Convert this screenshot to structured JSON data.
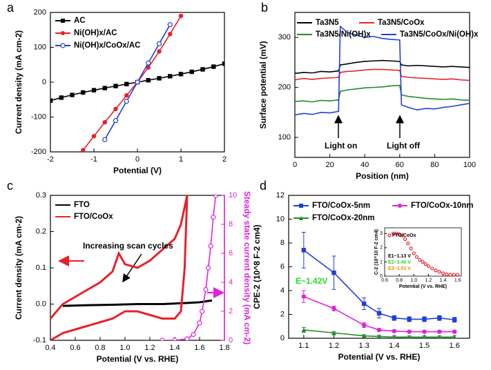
{
  "chart_data": [
    {
      "panel": "a",
      "type": "line",
      "xlabel": "Potential (V)",
      "ylabel": "Current density (mA cm-2)",
      "xlim": [
        -2,
        2
      ],
      "ylim": [
        -200,
        200
      ],
      "xticks": [
        -2,
        -1,
        0,
        1,
        2
      ],
      "yticks": [
        -200,
        -100,
        0,
        100,
        200
      ],
      "x": [
        -2,
        -1.75,
        -1.5,
        -1.25,
        -1,
        -0.75,
        -0.5,
        -0.25,
        0,
        0.25,
        0.5,
        0.75,
        1,
        1.25,
        1.5,
        1.75,
        2
      ],
      "series": [
        {
          "name": "AC",
          "color": "#000000",
          "marker": "square",
          "values": [
            -53,
            -44.4,
            -36.7,
            -29.6,
            -23.1,
            -17,
            -11.1,
            -5.5,
            0,
            5.5,
            11.1,
            17,
            23.1,
            29.6,
            36.7,
            44.4,
            53
          ]
        },
        {
          "name": "Ni(OH)x/AC",
          "color": "#e8202a",
          "marker": "circle",
          "values": [
            null,
            null,
            null,
            -195,
            -155,
            -115,
            -77,
            -38,
            0,
            42,
            88,
            138,
            190,
            null,
            null,
            null,
            null
          ]
        },
        {
          "name": "Ni(OH)x/CoOx/AC",
          "color": "#1f3fd8",
          "marker": "open-circle",
          "values": [
            null,
            null,
            null,
            null,
            null,
            -165,
            -110,
            -55,
            0,
            55,
            110,
            165,
            null,
            null,
            null,
            null,
            null
          ]
        }
      ]
    },
    {
      "panel": "b",
      "type": "line",
      "xlabel": "Position (nm)",
      "ylabel": "Surface potential (mV)",
      "xlim": [
        0,
        100
      ],
      "ylim": [
        60,
        350
      ],
      "xticks": [
        0,
        20,
        40,
        60,
        80,
        100
      ],
      "yticks": [
        100,
        200,
        300
      ],
      "x": [
        0,
        5,
        10,
        15,
        20,
        25,
        26,
        30,
        35,
        40,
        45,
        50,
        55,
        60,
        61,
        65,
        70,
        75,
        80,
        85,
        90,
        95,
        100
      ],
      "annotations": [
        {
          "text": "Light on"
        },
        {
          "text": "Light off"
        }
      ],
      "series": [
        {
          "name": "Ta3N5",
          "color": "#000000",
          "values": [
            228,
            230,
            229,
            232,
            231,
            233,
            245,
            247,
            250,
            252,
            253,
            254,
            253,
            252,
            245,
            243,
            244,
            243,
            242,
            241,
            242,
            241,
            240
          ]
        },
        {
          "name": "Ta3N5/CoOx",
          "color": "#e8202a",
          "values": [
            215,
            218,
            216,
            218,
            219,
            220,
            230,
            232,
            233,
            235,
            236,
            236,
            235,
            234,
            222,
            220,
            219,
            218,
            217,
            216,
            217,
            215,
            214
          ]
        },
        {
          "name": "Ta3N5/Ni(OH)x",
          "color": "#1e8c2a",
          "values": [
            172,
            173,
            171,
            174,
            173,
            175,
            192,
            195,
            197,
            199,
            200,
            201,
            203,
            204,
            185,
            182,
            180,
            178,
            177,
            176,
            177,
            175,
            174
          ]
        },
        {
          "name": "Ta3N5/CoOx/Ni(OH)x",
          "color": "#1f3fd8",
          "values": [
            145,
            148,
            146,
            150,
            149,
            152,
            322,
            310,
            305,
            300,
            302,
            298,
            296,
            295,
            165,
            160,
            155,
            158,
            157,
            160,
            162,
            165,
            168
          ]
        }
      ]
    },
    {
      "panel": "c",
      "type": "line",
      "xlabel": "Potential (V vs. RHE)",
      "ylabel": "Current density (mA cm-2)",
      "y2label": "Steady state current density (mA cm-2)",
      "xlim": [
        0.4,
        1.8
      ],
      "ylim": [
        -0.1,
        0.3
      ],
      "y2lim": [
        0,
        10
      ],
      "xticks": [
        0.4,
        0.6,
        0.8,
        {
          "value": 1,
          "label": "1.0"
        },
        1.2,
        1.4,
        1.6,
        1.8
      ],
      "yticks": [
        -0.1,
        {
          "value": 0,
          "label": "0.0"
        },
        0.1,
        0.2,
        0.3
      ],
      "y2ticks": [
        0,
        2,
        4,
        6,
        8,
        10
      ],
      "annotations": [
        {
          "text": "Increasing scan cycles"
        }
      ],
      "series": [
        {
          "name": "FTO",
          "color": "#000000",
          "x": [
            0.5,
            0.7,
            0.9,
            1.1,
            1.3,
            1.5,
            1.6,
            1.7
          ],
          "values": [
            -0.005,
            -0.003,
            -0.002,
            0,
            0,
            0.003,
            0.005,
            0.01
          ]
        },
        {
          "name": "FTO/CoOx",
          "color": "#e8202a",
          "x": [
            0.4,
            0.5,
            0.6,
            0.7,
            0.8,
            0.9,
            0.95,
            1.0,
            1.1,
            1.2,
            1.3,
            1.4,
            1.45,
            1.5,
            1.48,
            1.45,
            1.4,
            1.3,
            1.2,
            1.1,
            1.0,
            0.9,
            0.8,
            0.7,
            0.6,
            0.5,
            0.4
          ],
          "values": [
            -0.04,
            0,
            0.02,
            0.04,
            0.06,
            0.09,
            0.14,
            0.11,
            0.1,
            0.12,
            0.15,
            0.18,
            0.22,
            0.3,
            0.1,
            -0.02,
            -0.04,
            -0.04,
            -0.03,
            -0.02,
            -0.02,
            -0.04,
            -0.05,
            -0.06,
            -0.07,
            -0.08,
            -0.1
          ]
        },
        {
          "color": "#e020e0",
          "marker": "open-circle",
          "axis": "y2",
          "x": [
            1.3,
            1.4,
            1.5,
            1.55,
            1.6,
            1.62,
            1.65,
            1.67,
            1.69,
            1.71,
            1.73
          ],
          "values": [
            0,
            0,
            0.1,
            0.4,
            1.2,
            2,
            3.5,
            5,
            6.5,
            8.5,
            10
          ]
        }
      ]
    },
    {
      "panel": "d",
      "type": "line",
      "xlabel": "Potential (V vs. RHE)",
      "ylabel": "CPE-2 (10^8 F-2 cm4)",
      "xlim": [
        1.05,
        1.65
      ],
      "ylim": [
        0,
        12
      ],
      "xticks": [
        1.1,
        1.2,
        1.3,
        1.4,
        1.5,
        1.6
      ],
      "yticks": [
        0,
        2,
        4,
        6,
        8,
        10,
        12
      ],
      "x": [
        1.1,
        1.2,
        1.3,
        1.35,
        1.4,
        1.45,
        1.5,
        1.55,
        1.6
      ],
      "annotations": [
        {
          "text": "E~1.42V",
          "color": "#22dd22"
        }
      ],
      "series": [
        {
          "name": "FTO/CoOx-5nm",
          "color": "#1f3fd8",
          "marker": "square",
          "values": [
            7.4,
            5.5,
            2.9,
            2.1,
            1.7,
            1.6,
            1.6,
            1.7,
            1.55
          ],
          "errors": [
            1.5,
            1.4,
            0.5,
            0.4,
            0.2,
            0.2,
            0.2,
            0.2,
            0.2
          ]
        },
        {
          "name": "FTO/CoOx-10nm",
          "color": "#e020e0",
          "marker": "circle",
          "values": [
            3.5,
            2.5,
            1.1,
            0.7,
            0.6,
            0.55,
            0.55,
            0.55,
            0.55
          ],
          "errors": [
            0.5,
            0.2,
            0.2,
            0.1,
            0.1,
            0.1,
            0.1,
            0.1,
            0.1
          ]
        },
        {
          "name": "FTO/CoOx-20nm",
          "color": "#1e8c2a",
          "marker": "triangle",
          "values": [
            0.7,
            0.45,
            0.2,
            0.15,
            0.1,
            0.1,
            0.1,
            0.1,
            0.1
          ],
          "errors": [
            0.2,
            0.1,
            0.1,
            0.1,
            0.1,
            0.1,
            0.1,
            0.1,
            0.1
          ]
        }
      ]
    },
    {
      "type": "scatter",
      "xlabel": "Potential (V vs. RHE)",
      "ylabel": "C-2 (10^10 F-2 cm4)",
      "xlim": [
        0.6,
        1.65
      ],
      "ylim": [
        0,
        3.4
      ],
      "xticks": [
        0.6,
        0.8,
        {
          "value": 1,
          "label": "1.0"
        },
        1.2,
        1.4,
        1.6
      ],
      "yticks": [
        0,
        1,
        2,
        3
      ],
      "x": [
        0.72,
        0.76,
        0.8,
        0.84,
        0.88,
        0.92,
        0.96,
        1.0,
        1.04,
        1.08,
        1.12,
        1.16,
        1.2,
        1.25,
        1.3,
        1.35,
        1.4,
        1.45,
        1.5,
        1.55,
        1.6
      ],
      "annotations": [
        {
          "text": "E1~1.13 V",
          "color": "#000000"
        },
        {
          "text": "E2~1.40 V",
          "color": "#22dd22"
        },
        {
          "text": "E3~1.53 V",
          "color": "#ff8800"
        }
      ],
      "series": [
        {
          "name": "FTO/CoOx",
          "color": "#e8202a",
          "marker": "open-circle",
          "values": [
            3.0,
            3.0,
            2.95,
            2.85,
            2.6,
            2.3,
            1.95,
            1.6,
            1.35,
            1.15,
            1.0,
            0.85,
            0.7,
            0.55,
            0.4,
            0.3,
            0.2,
            0.12,
            0.1,
            0.1,
            0.1
          ]
        }
      ]
    }
  ]
}
